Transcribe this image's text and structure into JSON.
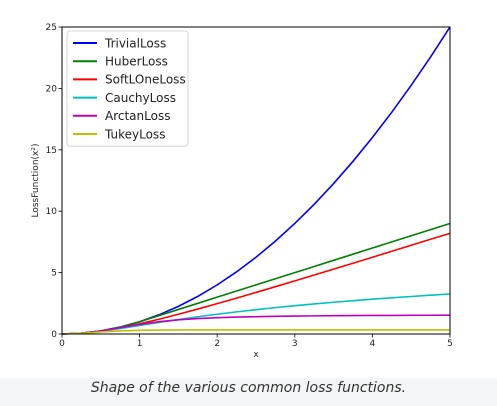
{
  "chart_data": {
    "type": "line",
    "title": "",
    "xlabel": "x",
    "ylabel": "LossFunction(x²)",
    "xlim": [
      0,
      5
    ],
    "ylim": [
      0,
      25
    ],
    "xticks": [
      "0",
      "1",
      "2",
      "3",
      "4",
      "5"
    ],
    "yticks": [
      "0",
      "5",
      "10",
      "15",
      "20",
      "25"
    ],
    "grid": false,
    "legend_position": "top-left",
    "x": [
      0,
      0.25,
      0.5,
      0.75,
      1,
      1.25,
      1.5,
      1.75,
      2,
      2.25,
      2.5,
      2.75,
      3,
      3.25,
      3.5,
      3.75,
      4,
      4.25,
      4.5,
      4.75,
      5
    ],
    "series": [
      {
        "name": "TrivialLoss",
        "color": "#0000ff",
        "values": [
          0,
          0.0625,
          0.25,
          0.5625,
          1,
          1.5625,
          2.25,
          3.0625,
          4,
          5.0625,
          6.25,
          7.5625,
          9,
          10.5625,
          12.25,
          14.0625,
          16,
          18.0625,
          20.25,
          22.5625,
          25
        ]
      },
      {
        "name": "HuberLoss",
        "color": "#008000",
        "values": [
          0,
          0.0625,
          0.25,
          0.5625,
          1,
          1.5,
          2,
          2.5,
          3,
          3.5,
          4,
          4.5,
          5,
          5.5,
          6,
          6.5,
          7,
          7.5,
          8,
          8.5,
          9
        ]
      },
      {
        "name": "SoftLOneLoss",
        "color": "#ff0000",
        "values": [
          0,
          0.0622,
          0.2361,
          0.5,
          0.8284,
          1.2016,
          1.6056,
          2.0311,
          2.4721,
          2.9245,
          3.3852,
          3.8522,
          4.3246,
          4.8011,
          5.281,
          5.7638,
          6.2492,
          6.7365,
          7.2254,
          7.7157,
          8.198
        ]
      },
      {
        "name": "CauchyLoss",
        "color": "#00bfbf",
        "values": [
          0,
          0.0606,
          0.2231,
          0.4463,
          0.6931,
          0.94,
          1.1787,
          1.4034,
          1.6094,
          1.8001,
          1.9805,
          2.1471,
          2.3026,
          2.4492,
          2.585,
          2.7146,
          2.8332,
          2.9483,
          3.054,
          3.1571,
          3.2581
        ]
      },
      {
        "name": "ArctanLoss",
        "color": "#bf00bf",
        "values": [
          0,
          0.0625,
          0.245,
          0.5135,
          0.7854,
          1.0011,
          1.1526,
          1.2547,
          1.3258,
          1.3772,
          1.4109,
          1.4389,
          1.4601,
          1.4766,
          1.4897,
          1.5002,
          1.5084,
          1.5155,
          1.5214,
          1.5263,
          1.5308
        ]
      },
      {
        "name": "TukeyLoss",
        "color": "#bfbf00",
        "values": [
          0,
          0.058,
          0.17,
          0.26,
          0.3,
          0.32,
          0.33,
          0.333,
          0.333,
          0.333,
          0.333,
          0.333,
          0.333,
          0.333,
          0.333,
          0.333,
          0.333,
          0.333,
          0.333,
          0.333,
          0.333
        ]
      }
    ]
  },
  "caption": "Shape of the various common loss functions."
}
